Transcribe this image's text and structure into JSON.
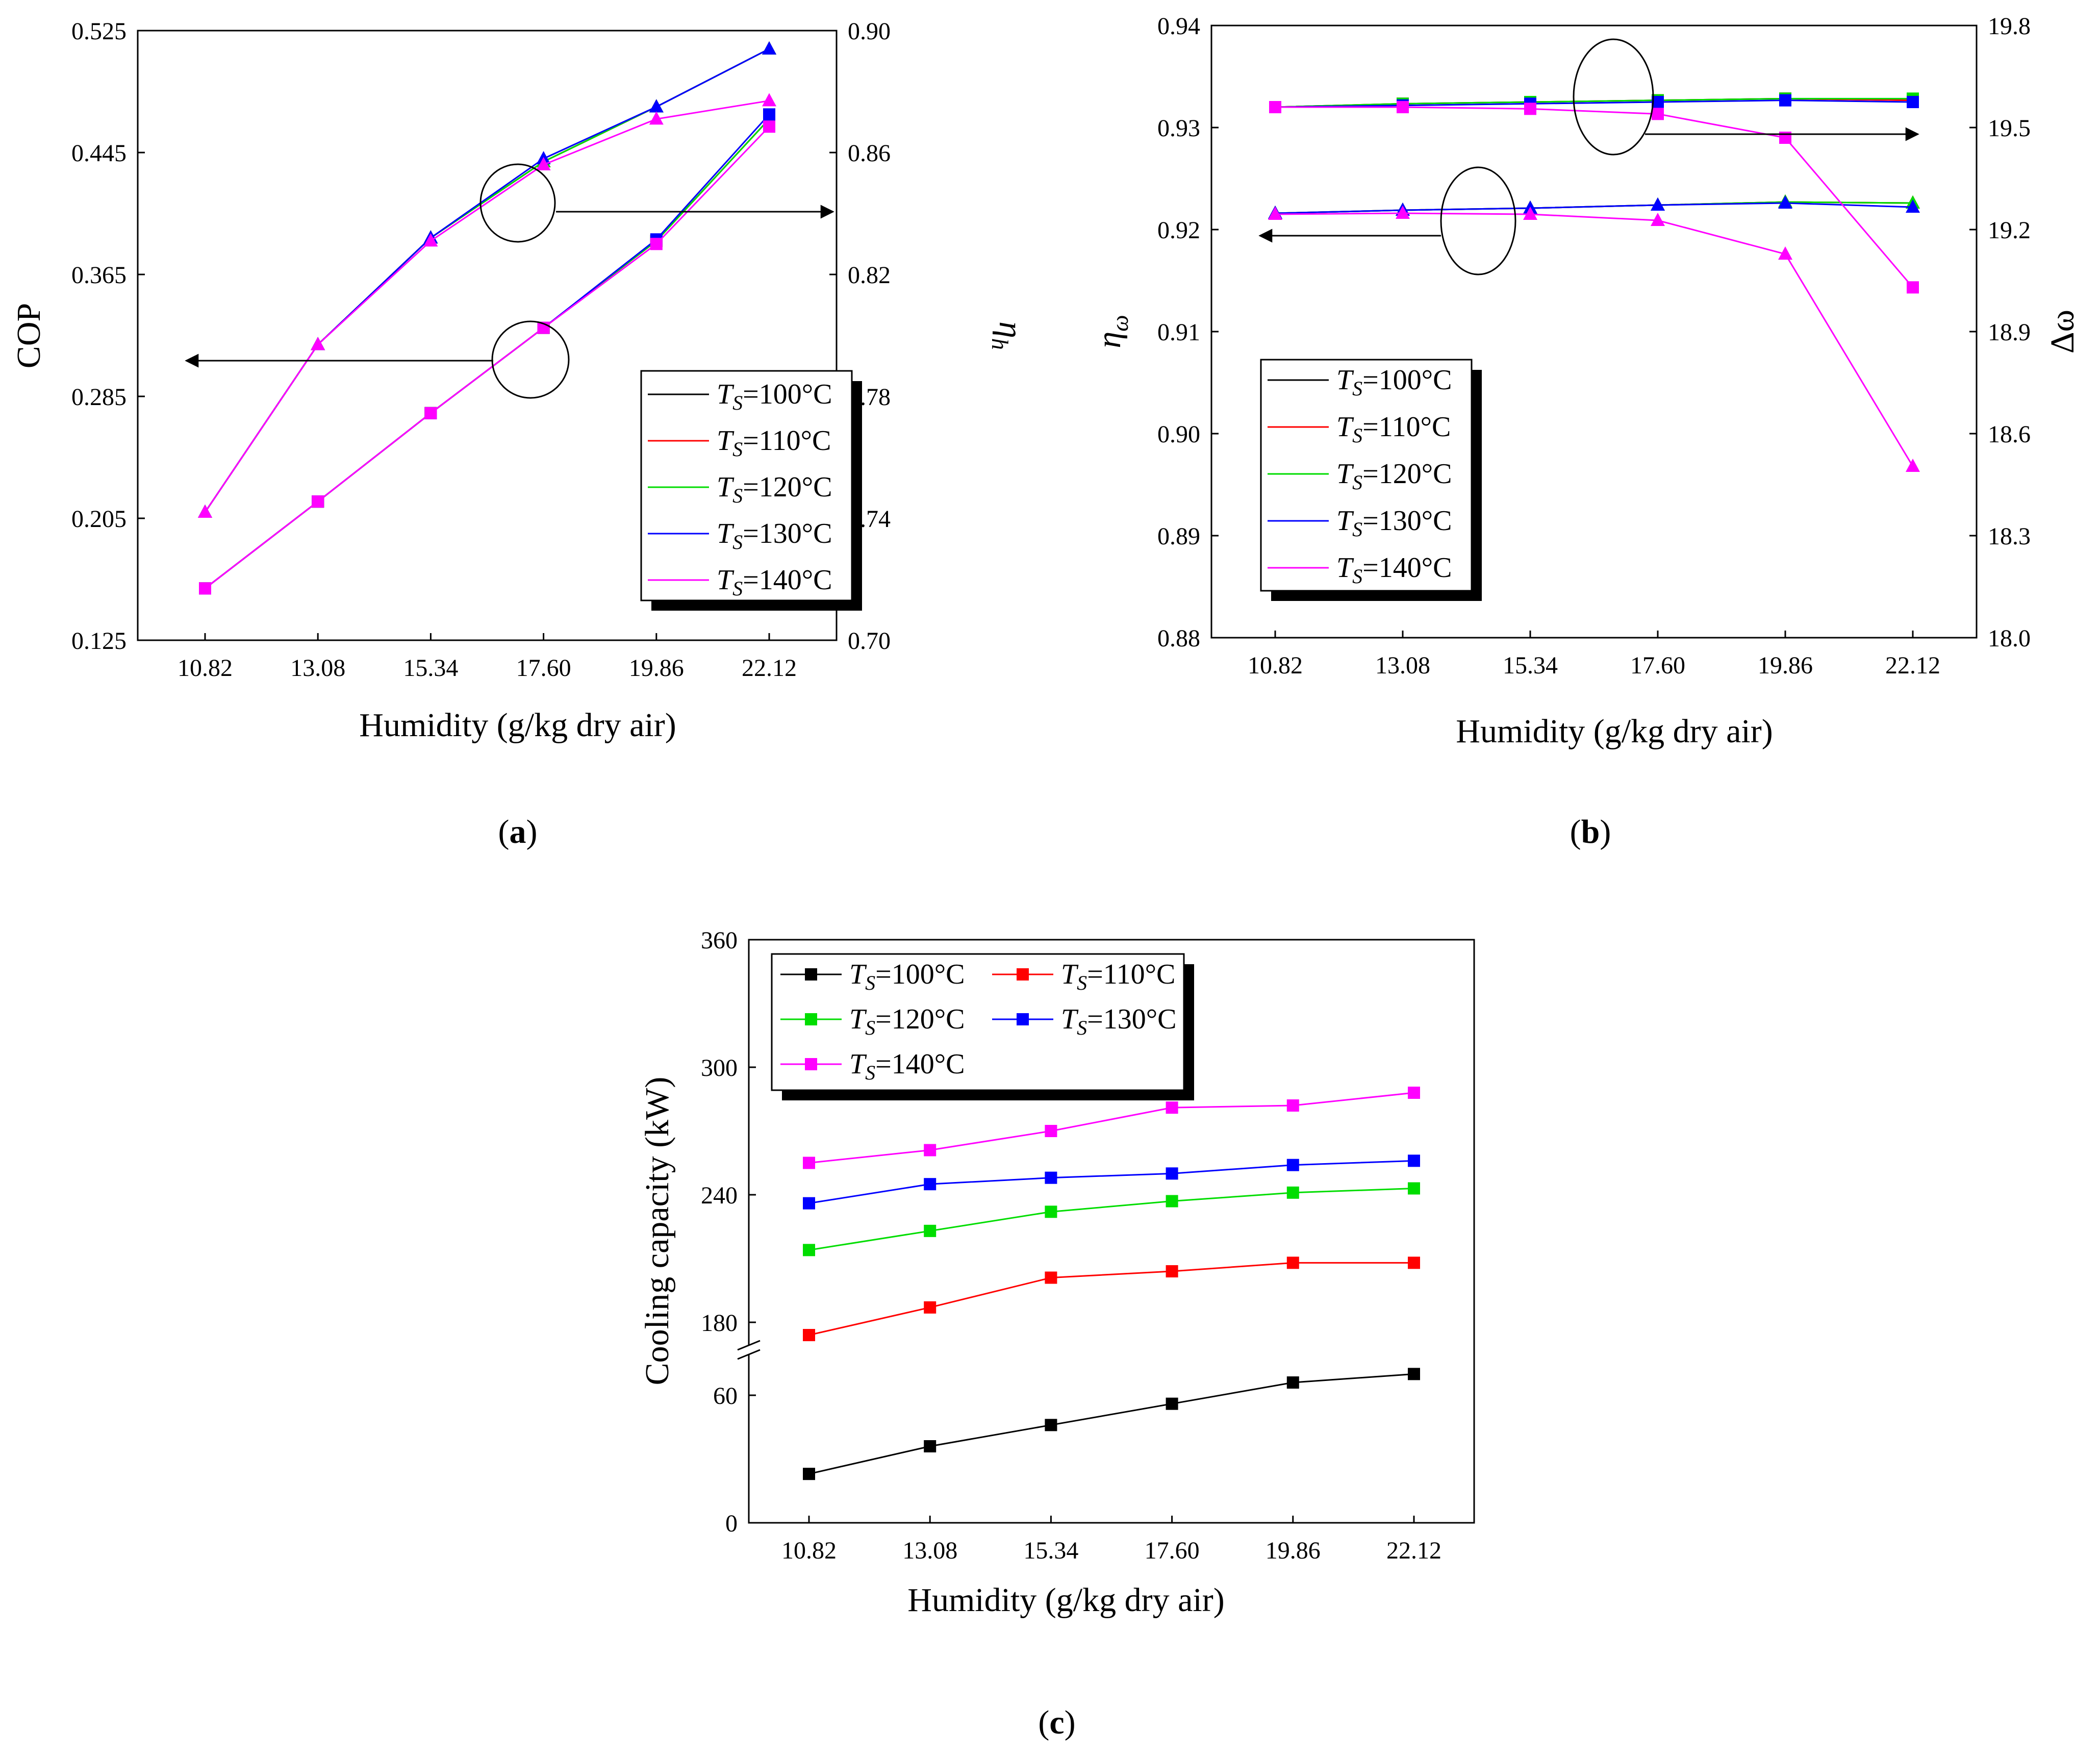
{
  "legend_labels": [
    "=100°C",
    "=110°C",
    "=120°C",
    "=130°C",
    "=140°C"
  ],
  "legend_symbol": "T",
  "legend_subscript": "S",
  "chart_data": [
    {
      "id": "a",
      "type": "line",
      "caption": "(a)",
      "caption_letter": "a",
      "xlabel": "Humidity (g/kg dry air)",
      "ylabel": "COP",
      "y2label": "η",
      "y2label_sub": "h",
      "categories": [
        "10.82",
        "13.08",
        "15.34",
        "17.60",
        "19.86",
        "22.12"
      ],
      "ylim": [
        0.125,
        0.525
      ],
      "yticks": [
        "0.125",
        "0.205",
        "0.285",
        "0.365",
        "0.445",
        "0.525"
      ],
      "y2lim": [
        0.7,
        0.9
      ],
      "y2ticks": [
        "0.70",
        "0.74",
        "0.78",
        "0.82",
        "0.86",
        "0.90"
      ],
      "colors": [
        "#000000",
        "#ff0000",
        "#00dd00",
        "#0000ff",
        "#ff00ff"
      ],
      "series": [
        {
          "name": "TS=100°C",
          "axis": "left",
          "marker": "square",
          "values": [
            0.159,
            0.216,
            0.274,
            0.33,
            0.387,
            0.467
          ]
        },
        {
          "name": "TS=110°C",
          "axis": "left",
          "marker": "square",
          "values": [
            0.159,
            0.216,
            0.274,
            0.33,
            0.387,
            0.467
          ]
        },
        {
          "name": "TS=120°C",
          "axis": "left",
          "marker": "square",
          "values": [
            0.159,
            0.216,
            0.274,
            0.33,
            0.387,
            0.467
          ]
        },
        {
          "name": "TS=130°C",
          "axis": "left",
          "marker": "square",
          "values": [
            0.159,
            0.216,
            0.274,
            0.33,
            0.388,
            0.47
          ]
        },
        {
          "name": "TS=140°C",
          "axis": "left",
          "marker": "square",
          "values": [
            0.159,
            0.216,
            0.274,
            0.33,
            0.385,
            0.462
          ]
        },
        {
          "name": "TS=100°C",
          "axis": "right",
          "marker": "triangle",
          "values": [
            0.742,
            0.797,
            0.832,
            0.857,
            0.875,
            0.894
          ]
        },
        {
          "name": "TS=110°C",
          "axis": "right",
          "marker": "triangle",
          "values": [
            0.742,
            0.797,
            0.832,
            0.857,
            0.875,
            0.894
          ]
        },
        {
          "name": "TS=120°C",
          "axis": "right",
          "marker": "triangle",
          "values": [
            0.742,
            0.797,
            0.832,
            0.857,
            0.875,
            0.894
          ]
        },
        {
          "name": "TS=130°C",
          "axis": "right",
          "marker": "triangle",
          "values": [
            0.742,
            0.797,
            0.832,
            0.858,
            0.875,
            0.894
          ]
        },
        {
          "name": "TS=140°C",
          "axis": "right",
          "marker": "triangle",
          "values": [
            0.742,
            0.797,
            0.831,
            0.856,
            0.871,
            0.877
          ]
        }
      ],
      "legend": "bottom-right"
    },
    {
      "id": "b",
      "type": "line",
      "caption": "(b)",
      "caption_letter": "b",
      "xlabel": "Humidity (g/kg dry air)",
      "ylabel": "η",
      "ylabel_sub": "ω",
      "y2label": "Δω",
      "categories": [
        "10.82",
        "13.08",
        "15.34",
        "17.60",
        "19.86",
        "22.12"
      ],
      "ylim": [
        0.88,
        0.94
      ],
      "yticks": [
        "0.88",
        "0.89",
        "0.90",
        "0.91",
        "0.92",
        "0.93",
        "0.94"
      ],
      "y2lim": [
        18.0,
        19.8
      ],
      "y2ticks": [
        "18.0",
        "18.3",
        "18.6",
        "18.9",
        "19.2",
        "19.5",
        "19.8"
      ],
      "colors": [
        "#000000",
        "#ff0000",
        "#00dd00",
        "#0000ff",
        "#ff00ff"
      ],
      "series": [
        {
          "name": "TS=100°C",
          "axis": "left",
          "marker": "triangle",
          "values": [
            0.9216,
            0.9219,
            0.9221,
            0.9224,
            0.9227,
            0.9226
          ]
        },
        {
          "name": "TS=110°C",
          "axis": "left",
          "marker": "triangle",
          "values": [
            0.9216,
            0.9219,
            0.9221,
            0.9224,
            0.9227,
            0.9226
          ]
        },
        {
          "name": "TS=120°C",
          "axis": "left",
          "marker": "triangle",
          "values": [
            0.9216,
            0.9219,
            0.9221,
            0.9224,
            0.9227,
            0.9226
          ]
        },
        {
          "name": "TS=130°C",
          "axis": "left",
          "marker": "triangle",
          "values": [
            0.9216,
            0.9219,
            0.9221,
            0.9224,
            0.9226,
            0.9222
          ]
        },
        {
          "name": "TS=140°C",
          "axis": "left",
          "marker": "triangle",
          "values": [
            0.9215,
            0.9216,
            0.9215,
            0.9209,
            0.9176,
            0.8968
          ]
        },
        {
          "name": "TS=100°C",
          "axis": "right",
          "marker": "square",
          "values": [
            19.56,
            19.57,
            19.575,
            19.58,
            19.585,
            19.58
          ]
        },
        {
          "name": "TS=110°C",
          "axis": "right",
          "marker": "square",
          "values": [
            19.56,
            19.57,
            19.575,
            19.58,
            19.585,
            19.58
          ]
        },
        {
          "name": "TS=120°C",
          "axis": "right",
          "marker": "square",
          "values": [
            19.56,
            19.57,
            19.575,
            19.58,
            19.585,
            19.585
          ]
        },
        {
          "name": "TS=130°C",
          "axis": "right",
          "marker": "square",
          "values": [
            19.56,
            19.565,
            19.57,
            19.575,
            19.58,
            19.575
          ]
        },
        {
          "name": "TS=140°C",
          "axis": "right",
          "marker": "square",
          "values": [
            19.56,
            19.56,
            19.555,
            19.54,
            19.47,
            19.03
          ]
        }
      ],
      "legend": "bottom-left"
    },
    {
      "id": "c",
      "type": "line",
      "caption": "(c)",
      "caption_letter": "c",
      "xlabel": "Humidity (g/kg dry air)",
      "ylabel": "Cooling capacity (kW)",
      "categories": [
        "10.82",
        "13.08",
        "15.34",
        "17.60",
        "19.86",
        "22.12"
      ],
      "axis_break": {
        "lower": [
          0,
          60
        ],
        "upper": [
          180,
          360
        ],
        "break_between": [
          60,
          180
        ]
      },
      "yticks": [
        "0",
        "60",
        "180",
        "240",
        "300",
        "360"
      ],
      "ytick_values": [
        0,
        60,
        180,
        240,
        300,
        360
      ],
      "colors": [
        "#000000",
        "#ff0000",
        "#00dd00",
        "#0000ff",
        "#ff00ff"
      ],
      "series": [
        {
          "name": "TS=100°C",
          "marker": "square",
          "values": [
            23,
            36,
            46,
            56,
            66,
            70
          ]
        },
        {
          "name": "TS=110°C",
          "marker": "square",
          "values": [
            174,
            187,
            201,
            204,
            208,
            208
          ]
        },
        {
          "name": "TS=120°C",
          "marker": "square",
          "values": [
            214,
            223,
            232,
            237,
            241,
            243
          ]
        },
        {
          "name": "TS=130°C",
          "marker": "square",
          "values": [
            236,
            245,
            248,
            250,
            254,
            256
          ]
        },
        {
          "name": "TS=140°C",
          "marker": "square",
          "values": [
            255,
            261,
            270,
            281,
            282,
            288
          ]
        }
      ],
      "legend": "top-left"
    }
  ]
}
